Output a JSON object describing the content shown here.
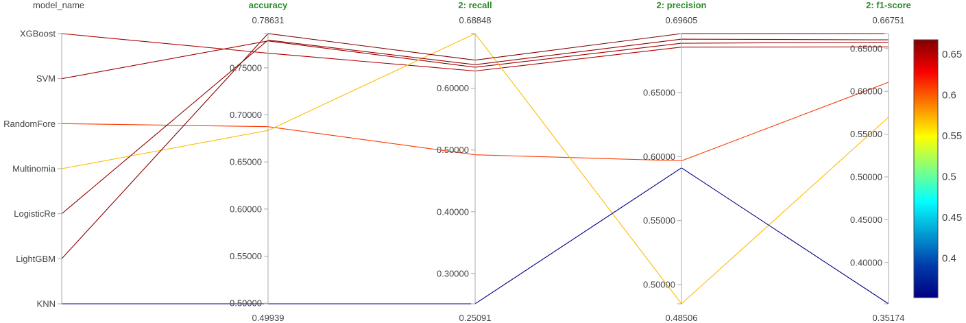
{
  "chart_data": {
    "type": "parallel_coordinates",
    "dimensions": [
      {
        "key": "model_name",
        "label": "model_name",
        "categorical": true,
        "categories": [
          "KNN",
          "LightGBM",
          "LogisticRe",
          "Multinomia",
          "RandomFore",
          "SVM",
          "XGBoost"
        ]
      },
      {
        "key": "accuracy",
        "label": "accuracy",
        "range": [
          0.49939,
          0.78631
        ],
        "range_labels": [
          "0.49939",
          "0.78631"
        ],
        "ticks": [
          0.5,
          0.55,
          0.6,
          0.65,
          0.7,
          0.75
        ],
        "tick_labels": [
          "0.50000",
          "0.55000",
          "0.60000",
          "0.65000",
          "0.70000",
          "0.75000"
        ]
      },
      {
        "key": "recall",
        "label": "2: recall",
        "range": [
          0.25091,
          0.68848
        ],
        "range_labels": [
          "0.25091",
          "0.68848"
        ],
        "ticks": [
          0.3,
          0.4,
          0.5,
          0.6
        ],
        "tick_labels": [
          "0.30000",
          "0.40000",
          "0.50000",
          "0.60000"
        ]
      },
      {
        "key": "precision",
        "label": "2: precision",
        "range": [
          0.48506,
          0.69605
        ],
        "range_labels": [
          "0.48506",
          "0.69605"
        ],
        "ticks": [
          0.5,
          0.55,
          0.6,
          0.65
        ],
        "tick_labels": [
          "0.50000",
          "0.55000",
          "0.60000",
          "0.65000"
        ]
      },
      {
        "key": "f1",
        "label": "2: f1-score",
        "range": [
          0.35174,
          0.66751
        ],
        "range_labels": [
          "0.35174",
          "0.66751"
        ],
        "ticks": [
          0.4,
          0.45,
          0.5,
          0.55,
          0.6,
          0.65
        ],
        "tick_labels": [
          "0.40000",
          "0.45000",
          "0.50000",
          "0.55000",
          "0.60000",
          "0.65000"
        ]
      }
    ],
    "rows": [
      {
        "model_name": "XGBoost",
        "accuracy": 0.7655,
        "recall": 0.628,
        "precision": 0.6855,
        "f1": 0.652,
        "color_value": 0.652
      },
      {
        "model_name": "SVM",
        "accuracy": 0.7785,
        "recall": 0.634,
        "precision": 0.6885,
        "f1": 0.6575,
        "color_value": 0.6575
      },
      {
        "model_name": "RandomFore",
        "accuracy": 0.6875,
        "recall": 0.4922,
        "precision": 0.5967,
        "f1": 0.6107,
        "color_value": 0.6107
      },
      {
        "model_name": "Multinomia",
        "accuracy": 0.6835,
        "recall": 0.68848,
        "precision": 0.48506,
        "f1": 0.5698,
        "color_value": 0.5698
      },
      {
        "model_name": "LogisticRe",
        "accuracy": 0.7795,
        "recall": 0.6382,
        "precision": 0.6917,
        "f1": 0.6602,
        "color_value": 0.6602
      },
      {
        "model_name": "LightGBM",
        "accuracy": 0.78631,
        "recall": 0.6455,
        "precision": 0.69605,
        "f1": 0.66751,
        "color_value": 0.66751
      },
      {
        "model_name": "KNN",
        "accuracy": 0.49939,
        "recall": 0.25091,
        "precision": 0.5912,
        "f1": 0.35174,
        "color_value": 0.35174
      }
    ],
    "colorscale": "Jet",
    "color_range": [
      0.35174,
      0.66751
    ],
    "colorbar_ticks": [
      0.4,
      0.45,
      0.5,
      0.55,
      0.6,
      0.65
    ],
    "colorbar_tick_labels": [
      "0.4",
      "0.45",
      "0.5",
      "0.55",
      "0.6",
      "0.65"
    ],
    "colors": {
      "axis_title": "#2a8a2a",
      "axis_line": "#a8a8a8",
      "text": "#444444"
    }
  }
}
